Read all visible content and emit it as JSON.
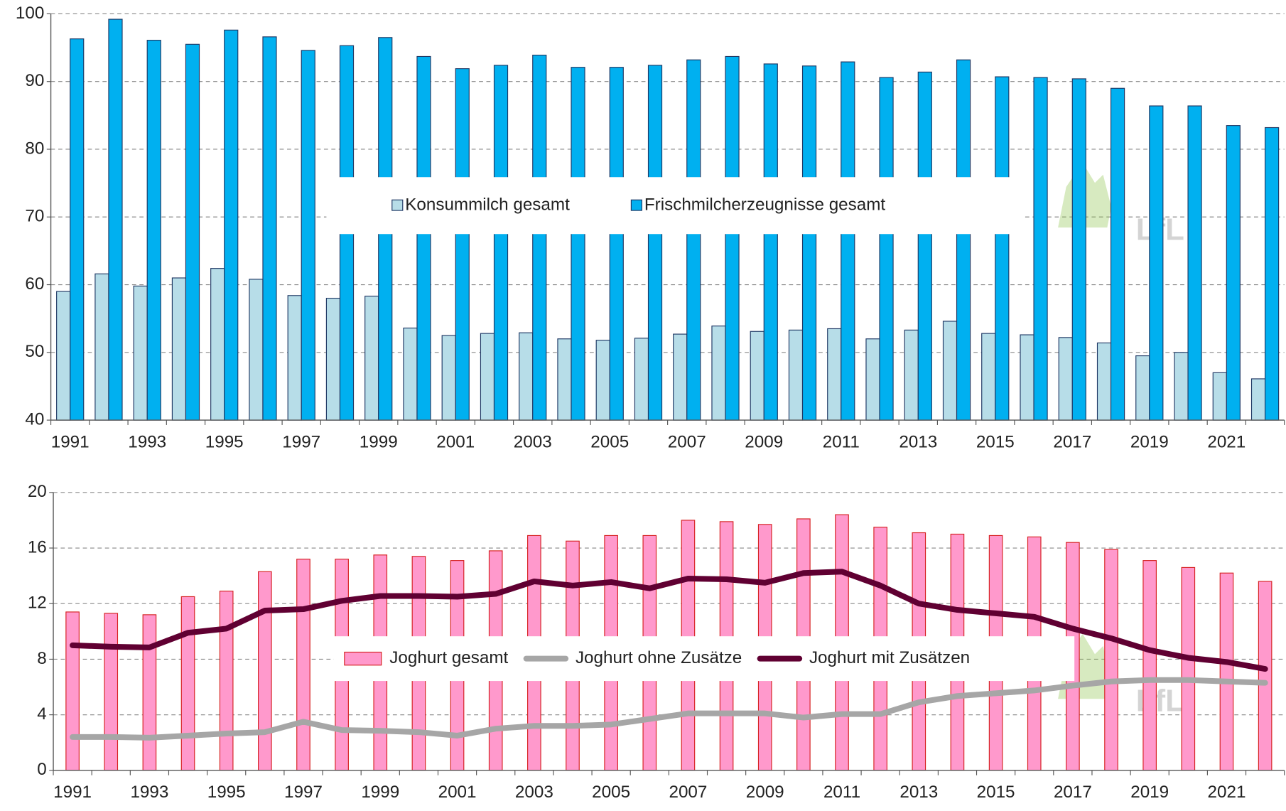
{
  "watermark": "LfL",
  "chart_data": [
    {
      "type": "bar",
      "categories": [
        "1991",
        null,
        "1993",
        null,
        "1995",
        null,
        "1997",
        null,
        "1999",
        null,
        "2001",
        null,
        "2003",
        null,
        "2005",
        null,
        "2007",
        null,
        "2009",
        null,
        "2011",
        null,
        "2013",
        null,
        "2015",
        null,
        "2017",
        null,
        "2019",
        null,
        "2021",
        null
      ],
      "series": [
        {
          "name": "Konsummilch gesamt",
          "kind": "bar",
          "color": "#b7dde8",
          "values": [
            59.0,
            61.6,
            59.8,
            61.0,
            62.4,
            60.8,
            58.4,
            58.0,
            58.3,
            53.6,
            52.5,
            52.8,
            52.9,
            52.0,
            51.8,
            52.1,
            52.7,
            53.9,
            53.1,
            53.3,
            53.5,
            52.0,
            53.3,
            54.6,
            52.8,
            52.6,
            52.2,
            51.4,
            49.5,
            50.0,
            47.0,
            46.1
          ]
        },
        {
          "name": "Frischmilcherzeugnisse gesamt",
          "kind": "bar",
          "color": "#00b0f0",
          "values": [
            96.3,
            99.2,
            96.1,
            95.5,
            97.6,
            96.6,
            94.6,
            95.3,
            96.5,
            93.7,
            91.9,
            92.4,
            93.9,
            92.1,
            92.1,
            92.4,
            93.2,
            93.7,
            92.6,
            92.3,
            92.9,
            90.6,
            91.4,
            93.2,
            90.7,
            90.6,
            90.4,
            89.0,
            86.4,
            86.4,
            83.5,
            83.2
          ]
        }
      ],
      "ylim": [
        40,
        100
      ],
      "yticks": [
        40,
        50,
        60,
        70,
        80,
        90,
        100
      ],
      "grid": true,
      "legend": "center"
    },
    {
      "type": "combo",
      "categories": [
        "1991",
        null,
        "1993",
        null,
        "1995",
        null,
        "1997",
        null,
        "1999",
        null,
        "2001",
        null,
        "2003",
        null,
        "2005",
        null,
        "2007",
        null,
        "2009",
        null,
        "2011",
        null,
        "2013",
        null,
        "2015",
        null,
        "2017",
        null,
        "2019",
        null,
        "2021",
        null
      ],
      "series": [
        {
          "name": "Joghurt gesamt",
          "kind": "bar",
          "color": "#ff99cc",
          "values": [
            11.4,
            11.3,
            11.2,
            12.5,
            12.9,
            14.3,
            15.2,
            15.2,
            15.5,
            15.4,
            15.1,
            15.8,
            16.9,
            16.5,
            16.9,
            16.9,
            18.0,
            17.9,
            17.7,
            18.1,
            18.4,
            17.5,
            17.1,
            17.0,
            16.9,
            16.8,
            16.4,
            15.9,
            15.1,
            14.6,
            14.2,
            13.6
          ]
        },
        {
          "name": "Joghurt ohne Zusätze",
          "kind": "line",
          "color": "#a6a6a6",
          "values": [
            2.4,
            2.4,
            2.35,
            2.5,
            2.65,
            2.75,
            3.5,
            2.9,
            2.85,
            2.75,
            2.5,
            3.0,
            3.2,
            3.2,
            3.3,
            3.7,
            4.1,
            4.1,
            4.1,
            3.8,
            4.05,
            4.05,
            4.9,
            5.35,
            5.55,
            5.75,
            6.1,
            6.4,
            6.5,
            6.5,
            6.4,
            6.3
          ]
        },
        {
          "name": "Joghurt mit Zusätzen",
          "kind": "line",
          "color": "#600032",
          "values": [
            9.0,
            8.9,
            8.85,
            9.9,
            10.2,
            11.5,
            11.6,
            12.2,
            12.55,
            12.55,
            12.5,
            12.7,
            13.6,
            13.3,
            13.55,
            13.1,
            13.8,
            13.75,
            13.5,
            14.2,
            14.3,
            13.3,
            12.0,
            11.55,
            11.3,
            11.05,
            10.2,
            9.5,
            8.65,
            8.1,
            7.8,
            7.3
          ]
        }
      ],
      "ylim": [
        0,
        20
      ],
      "yticks": [
        0,
        4,
        8,
        12,
        16,
        20
      ],
      "grid": true,
      "legend": "center"
    }
  ]
}
